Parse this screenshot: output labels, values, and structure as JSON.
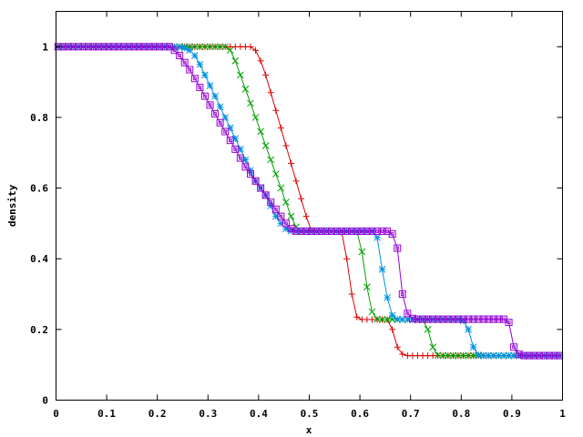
{
  "chart_data": {
    "type": "line",
    "xlabel": "x",
    "ylabel": "density",
    "xlim": [
      0,
      1
    ],
    "ylim": [
      0,
      1.1
    ],
    "x_ticks": [
      {
        "value": 0,
        "label": "0"
      },
      {
        "value": 0.1,
        "label": "0.1"
      },
      {
        "value": 0.2,
        "label": "0.2"
      },
      {
        "value": 0.3,
        "label": "0.3"
      },
      {
        "value": 0.4,
        "label": "0.4"
      },
      {
        "value": 0.5,
        "label": "0.5"
      },
      {
        "value": 0.6,
        "label": "0.6"
      },
      {
        "value": 0.7,
        "label": "0.7"
      },
      {
        "value": 0.8,
        "label": "0.8"
      },
      {
        "value": 0.9,
        "label": "0.9"
      },
      {
        "value": 1,
        "label": "1"
      }
    ],
    "y_ticks": [
      {
        "value": 0,
        "label": "0"
      },
      {
        "value": 0.2,
        "label": "0.2"
      },
      {
        "value": 0.4,
        "label": "0.4"
      },
      {
        "value": 0.6,
        "label": "0.6"
      },
      {
        "value": 0.8,
        "label": "0.8"
      },
      {
        "value": 1,
        "label": "1"
      }
    ],
    "grid": false,
    "legend": "none",
    "series": [
      {
        "color": "#dd0000",
        "marker": "plus",
        "x": [
          0.004,
          0.014,
          0.024,
          0.034,
          0.044,
          0.054,
          0.064,
          0.074,
          0.084,
          0.094,
          0.104,
          0.114,
          0.124,
          0.134,
          0.144,
          0.154,
          0.164,
          0.174,
          0.184,
          0.194,
          0.204,
          0.214,
          0.224,
          0.234,
          0.244,
          0.254,
          0.264,
          0.274,
          0.284,
          0.294,
          0.304,
          0.314,
          0.324,
          0.334,
          0.344,
          0.354,
          0.364,
          0.374,
          0.384,
          0.394,
          0.404,
          0.414,
          0.424,
          0.434,
          0.444,
          0.454,
          0.464,
          0.474,
          0.484,
          0.494,
          0.504,
          0.514,
          0.524,
          0.534,
          0.544,
          0.554,
          0.564,
          0.574,
          0.584,
          0.594,
          0.604,
          0.614,
          0.624,
          0.634,
          0.644,
          0.654,
          0.664,
          0.674,
          0.684,
          0.694,
          0.704,
          0.714,
          0.724,
          0.734,
          0.744,
          0.754,
          0.764,
          0.774,
          0.784,
          0.794,
          0.804,
          0.814,
          0.824,
          0.834,
          0.844,
          0.854,
          0.864,
          0.874,
          0.884,
          0.894,
          0.904,
          0.914,
          0.924,
          0.934,
          0.944,
          0.954,
          0.964,
          0.974,
          0.984,
          0.994
        ],
        "y": [
          1,
          1,
          1,
          1,
          1,
          1,
          1,
          1,
          1,
          1,
          1,
          1,
          1,
          1,
          1,
          1,
          1,
          1,
          1,
          1,
          1,
          1,
          1,
          1,
          1,
          1,
          1,
          1,
          1,
          1,
          1,
          1,
          1,
          1,
          1,
          1,
          1,
          1,
          1,
          0.99,
          0.96,
          0.92,
          0.87,
          0.82,
          0.77,
          0.72,
          0.67,
          0.62,
          0.57,
          0.52,
          0.48,
          0.478,
          0.478,
          0.478,
          0.478,
          0.478,
          0.476,
          0.4,
          0.3,
          0.235,
          0.228,
          0.228,
          0.228,
          0.228,
          0.228,
          0.228,
          0.2,
          0.15,
          0.13,
          0.126,
          0.126,
          0.126,
          0.126,
          0.126,
          0.126,
          0.126,
          0.126,
          0.126,
          0.126,
          0.126,
          0.126,
          0.126,
          0.126,
          0.126,
          0.126,
          0.126,
          0.126,
          0.126,
          0.126,
          0.126,
          0.126,
          0.126,
          0.126,
          0.126,
          0.126,
          0.126,
          0.126,
          0.126,
          0.126,
          0.126
        ]
      },
      {
        "color": "#00a000",
        "marker": "x",
        "x": [
          0.004,
          0.014,
          0.024,
          0.034,
          0.044,
          0.054,
          0.064,
          0.074,
          0.084,
          0.094,
          0.104,
          0.114,
          0.124,
          0.134,
          0.144,
          0.154,
          0.164,
          0.174,
          0.184,
          0.194,
          0.204,
          0.214,
          0.224,
          0.234,
          0.244,
          0.254,
          0.264,
          0.274,
          0.284,
          0.294,
          0.304,
          0.314,
          0.324,
          0.334,
          0.344,
          0.354,
          0.364,
          0.374,
          0.384,
          0.394,
          0.404,
          0.414,
          0.424,
          0.434,
          0.444,
          0.454,
          0.464,
          0.474,
          0.484,
          0.494,
          0.504,
          0.514,
          0.524,
          0.534,
          0.544,
          0.554,
          0.564,
          0.574,
          0.584,
          0.594,
          0.604,
          0.614,
          0.624,
          0.634,
          0.644,
          0.654,
          0.664,
          0.674,
          0.684,
          0.694,
          0.704,
          0.714,
          0.724,
          0.734,
          0.744,
          0.754,
          0.764,
          0.774,
          0.784,
          0.794,
          0.804,
          0.814,
          0.824,
          0.834,
          0.844,
          0.854,
          0.864,
          0.874,
          0.884,
          0.894,
          0.904,
          0.914,
          0.924,
          0.934,
          0.944,
          0.954,
          0.964,
          0.974,
          0.984,
          0.994
        ],
        "y": [
          1,
          1,
          1,
          1,
          1,
          1,
          1,
          1,
          1,
          1,
          1,
          1,
          1,
          1,
          1,
          1,
          1,
          1,
          1,
          1,
          1,
          1,
          1,
          1,
          1,
          1,
          1,
          1,
          1,
          1,
          1,
          1,
          1,
          1,
          0.99,
          0.96,
          0.92,
          0.88,
          0.84,
          0.8,
          0.76,
          0.72,
          0.68,
          0.64,
          0.6,
          0.56,
          0.52,
          0.49,
          0.479,
          0.478,
          0.478,
          0.478,
          0.478,
          0.478,
          0.478,
          0.478,
          0.478,
          0.478,
          0.478,
          0.478,
          0.42,
          0.32,
          0.25,
          0.229,
          0.228,
          0.228,
          0.228,
          0.228,
          0.228,
          0.228,
          0.228,
          0.228,
          0.228,
          0.2,
          0.15,
          0.127,
          0.126,
          0.126,
          0.126,
          0.126,
          0.126,
          0.126,
          0.126,
          0.126,
          0.126,
          0.126,
          0.126,
          0.126,
          0.126,
          0.126,
          0.126,
          0.126,
          0.126,
          0.126,
          0.126,
          0.126,
          0.126,
          0.126,
          0.126,
          0.126
        ]
      },
      {
        "color": "#0090e0",
        "marker": "asterisk",
        "x": [
          0.004,
          0.014,
          0.024,
          0.034,
          0.044,
          0.054,
          0.064,
          0.074,
          0.084,
          0.094,
          0.104,
          0.114,
          0.124,
          0.134,
          0.144,
          0.154,
          0.164,
          0.174,
          0.184,
          0.194,
          0.204,
          0.214,
          0.224,
          0.234,
          0.244,
          0.254,
          0.264,
          0.274,
          0.284,
          0.294,
          0.304,
          0.314,
          0.324,
          0.334,
          0.344,
          0.354,
          0.364,
          0.374,
          0.384,
          0.394,
          0.404,
          0.414,
          0.424,
          0.434,
          0.444,
          0.454,
          0.464,
          0.474,
          0.484,
          0.494,
          0.504,
          0.514,
          0.524,
          0.534,
          0.544,
          0.554,
          0.564,
          0.574,
          0.584,
          0.594,
          0.604,
          0.614,
          0.624,
          0.634,
          0.644,
          0.654,
          0.664,
          0.674,
          0.684,
          0.694,
          0.704,
          0.714,
          0.724,
          0.734,
          0.744,
          0.754,
          0.764,
          0.774,
          0.784,
          0.794,
          0.804,
          0.814,
          0.824,
          0.834,
          0.844,
          0.854,
          0.864,
          0.874,
          0.884,
          0.894,
          0.904,
          0.914,
          0.924,
          0.934,
          0.944,
          0.954,
          0.964,
          0.974,
          0.984,
          0.994
        ],
        "y": [
          1,
          1,
          1,
          1,
          1,
          1,
          1,
          1,
          1,
          1,
          1,
          1,
          1,
          1,
          1,
          1,
          1,
          1,
          1,
          1,
          1,
          1,
          1,
          1,
          0.999,
          0.996,
          0.99,
          0.975,
          0.95,
          0.92,
          0.89,
          0.86,
          0.83,
          0.8,
          0.77,
          0.74,
          0.71,
          0.68,
          0.65,
          0.62,
          0.6,
          0.58,
          0.55,
          0.52,
          0.5,
          0.485,
          0.479,
          0.478,
          0.478,
          0.478,
          0.478,
          0.478,
          0.478,
          0.478,
          0.478,
          0.478,
          0.478,
          0.478,
          0.478,
          0.478,
          0.478,
          0.478,
          0.478,
          0.46,
          0.37,
          0.29,
          0.24,
          0.229,
          0.228,
          0.228,
          0.228,
          0.228,
          0.228,
          0.228,
          0.228,
          0.228,
          0.228,
          0.228,
          0.228,
          0.228,
          0.225,
          0.2,
          0.15,
          0.128,
          0.126,
          0.126,
          0.126,
          0.126,
          0.126,
          0.126,
          0.126,
          0.126,
          0.126,
          0.126,
          0.126,
          0.126,
          0.126,
          0.126,
          0.126,
          0.126
        ]
      },
      {
        "color": "#9400d3",
        "marker": "box",
        "x": [
          0.004,
          0.014,
          0.024,
          0.034,
          0.044,
          0.054,
          0.064,
          0.074,
          0.084,
          0.094,
          0.104,
          0.114,
          0.124,
          0.134,
          0.144,
          0.154,
          0.164,
          0.174,
          0.184,
          0.194,
          0.204,
          0.214,
          0.224,
          0.234,
          0.244,
          0.254,
          0.264,
          0.274,
          0.284,
          0.294,
          0.304,
          0.314,
          0.324,
          0.334,
          0.344,
          0.354,
          0.364,
          0.374,
          0.384,
          0.394,
          0.404,
          0.414,
          0.424,
          0.434,
          0.444,
          0.454,
          0.464,
          0.474,
          0.484,
          0.494,
          0.504,
          0.514,
          0.524,
          0.534,
          0.544,
          0.554,
          0.564,
          0.574,
          0.584,
          0.594,
          0.604,
          0.614,
          0.624,
          0.634,
          0.644,
          0.654,
          0.664,
          0.674,
          0.684,
          0.694,
          0.704,
          0.714,
          0.724,
          0.734,
          0.744,
          0.754,
          0.764,
          0.774,
          0.784,
          0.794,
          0.804,
          0.814,
          0.824,
          0.834,
          0.844,
          0.854,
          0.864,
          0.874,
          0.884,
          0.894,
          0.904,
          0.914,
          0.924,
          0.934,
          0.944,
          0.954,
          0.964,
          0.974,
          0.984,
          0.994
        ],
        "y": [
          1,
          1,
          1,
          1,
          1,
          1,
          1,
          1,
          1,
          1,
          1,
          1,
          1,
          1,
          1,
          1,
          1,
          1,
          1,
          1,
          1,
          1,
          1,
          0.99,
          0.975,
          0.955,
          0.935,
          0.91,
          0.885,
          0.86,
          0.835,
          0.81,
          0.785,
          0.76,
          0.735,
          0.71,
          0.685,
          0.66,
          0.64,
          0.62,
          0.6,
          0.58,
          0.56,
          0.54,
          0.52,
          0.5,
          0.485,
          0.478,
          0.478,
          0.478,
          0.478,
          0.478,
          0.478,
          0.478,
          0.478,
          0.478,
          0.478,
          0.478,
          0.478,
          0.478,
          0.478,
          0.478,
          0.478,
          0.478,
          0.478,
          0.478,
          0.47,
          0.43,
          0.3,
          0.245,
          0.231,
          0.229,
          0.229,
          0.229,
          0.229,
          0.229,
          0.229,
          0.229,
          0.229,
          0.229,
          0.229,
          0.229,
          0.229,
          0.229,
          0.229,
          0.229,
          0.229,
          0.229,
          0.229,
          0.22,
          0.15,
          0.13,
          0.126,
          0.126,
          0.126,
          0.126,
          0.126,
          0.126,
          0.126,
          0.126
        ]
      }
    ]
  }
}
